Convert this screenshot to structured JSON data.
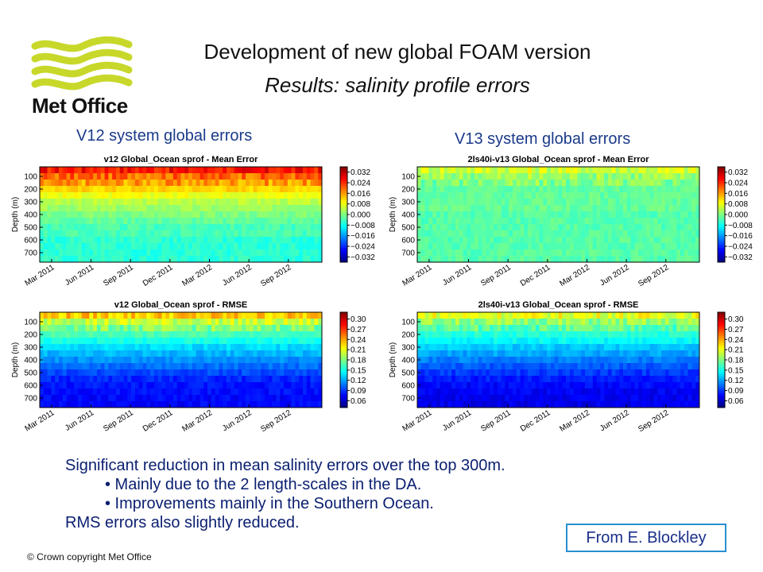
{
  "header": {
    "logo_text": "Met Office",
    "title": "Development  of new global FOAM version",
    "subtitle": "Results: salinity profile errors"
  },
  "columns": {
    "v12": "V12 system global errors",
    "v13": "V13 system global errors"
  },
  "chart_data": [
    {
      "type": "heatmap",
      "title": "v12 Global_Ocean sprof - Mean Error",
      "ylabel": "Depth (m)",
      "y_ticks": [
        "100",
        "200",
        "300",
        "400",
        "500",
        "600",
        "700"
      ],
      "x_ticks": [
        "Mar 2011",
        "Jun 2011",
        "Sep 2011",
        "Dec 2011",
        "Mar 2012",
        "Jun 2012",
        "Sep 2012"
      ],
      "colorbar_ticks": [
        "0.032",
        "0.024",
        "0.016",
        "0.008",
        "0.000",
        "−0.008",
        "−0.016",
        "−0.024",
        "−0.032"
      ],
      "vlim": [
        -0.036,
        0.036
      ],
      "depth_levels": [
        50,
        100,
        150,
        200,
        250,
        300,
        350,
        400,
        450,
        500,
        550,
        600,
        650,
        700,
        750
      ],
      "level_values": [
        0.026,
        0.02,
        0.016,
        0.012,
        0.008,
        0.004,
        0.002,
        0.0,
        -0.002,
        -0.004,
        -0.004,
        -0.006,
        -0.006,
        -0.006,
        -0.006
      ]
    },
    {
      "type": "heatmap",
      "title": "2ls40i-v13 Global_Ocean sprof - Mean Error",
      "ylabel": "Depth (m)",
      "y_ticks": [
        "100",
        "200",
        "300",
        "400",
        "500",
        "600",
        "700"
      ],
      "x_ticks": [
        "Mar 2011",
        "Jun 2011",
        "Sep 2011",
        "Dec 2011",
        "Mar 2012",
        "Jun 2012",
        "Sep 2012"
      ],
      "colorbar_ticks": [
        "0.032",
        "0.024",
        "0.016",
        "0.008",
        "0.000",
        "−0.008",
        "−0.016",
        "−0.024",
        "−0.032"
      ],
      "vlim": [
        -0.036,
        0.036
      ],
      "depth_levels": [
        50,
        100,
        150,
        200,
        250,
        300,
        350,
        400,
        450,
        500,
        550,
        600,
        650,
        700,
        750
      ],
      "level_values": [
        0.006,
        0.002,
        0.0,
        -0.002,
        -0.002,
        -0.002,
        -0.002,
        -0.003,
        -0.003,
        -0.003,
        -0.003,
        -0.003,
        -0.003,
        -0.003,
        -0.003
      ]
    },
    {
      "type": "heatmap",
      "title": "v12 Global_Ocean sprof - RMSE",
      "ylabel": "Depth (m)",
      "y_ticks": [
        "100",
        "200",
        "300",
        "400",
        "500",
        "600",
        "700"
      ],
      "x_ticks": [
        "Mar 2011",
        "Jun 2011",
        "Sep 2011",
        "Dec 2011",
        "Mar 2012",
        "Jun 2012",
        "Sep 2012"
      ],
      "colorbar_ticks": [
        "0.30",
        "0.27",
        "0.24",
        "0.21",
        "0.18",
        "0.15",
        "0.12",
        "0.09",
        "0.06"
      ],
      "vlim": [
        0.04,
        0.32
      ],
      "depth_levels": [
        50,
        100,
        150,
        200,
        250,
        300,
        350,
        400,
        450,
        500,
        550,
        600,
        650,
        700,
        750
      ],
      "level_values": [
        0.23,
        0.2,
        0.18,
        0.165,
        0.15,
        0.135,
        0.125,
        0.115,
        0.105,
        0.095,
        0.085,
        0.08,
        0.078,
        0.076,
        0.075
      ]
    },
    {
      "type": "heatmap",
      "title": "2ls40i-v13 Global_Ocean sprof - RMSE",
      "ylabel": "Depth (m)",
      "y_ticks": [
        "100",
        "200",
        "300",
        "400",
        "500",
        "600",
        "700"
      ],
      "x_ticks": [
        "Mar 2011",
        "Jun 2011",
        "Sep 2011",
        "Dec 2011",
        "Mar 2012",
        "Jun 2012",
        "Sep 2012"
      ],
      "colorbar_ticks": [
        "0.30",
        "0.27",
        "0.24",
        "0.21",
        "0.18",
        "0.15",
        "0.12",
        "0.09",
        "0.06"
      ],
      "vlim": [
        0.04,
        0.32
      ],
      "depth_levels": [
        50,
        100,
        150,
        200,
        250,
        300,
        350,
        400,
        450,
        500,
        550,
        600,
        650,
        700,
        750
      ],
      "level_values": [
        0.21,
        0.185,
        0.17,
        0.155,
        0.145,
        0.13,
        0.12,
        0.11,
        0.1,
        0.09,
        0.082,
        0.076,
        0.073,
        0.071,
        0.07
      ]
    }
  ],
  "summary": {
    "line1": "Significant reduction in mean salinity errors over the top 300m.",
    "bullet1": "• Mainly due to the 2 length-scales in the DA.",
    "bullet2": "• Improvements mainly in the Southern Ocean.",
    "line2": "RMS errors also slightly reduced."
  },
  "credit": "From E. Blockley",
  "copyright": "© Crown copyright   Met Office",
  "colors": {
    "logo_green": "#c8d82a",
    "heading_blue": "#1a3a8a",
    "credit_border": "#2a8fd0"
  }
}
